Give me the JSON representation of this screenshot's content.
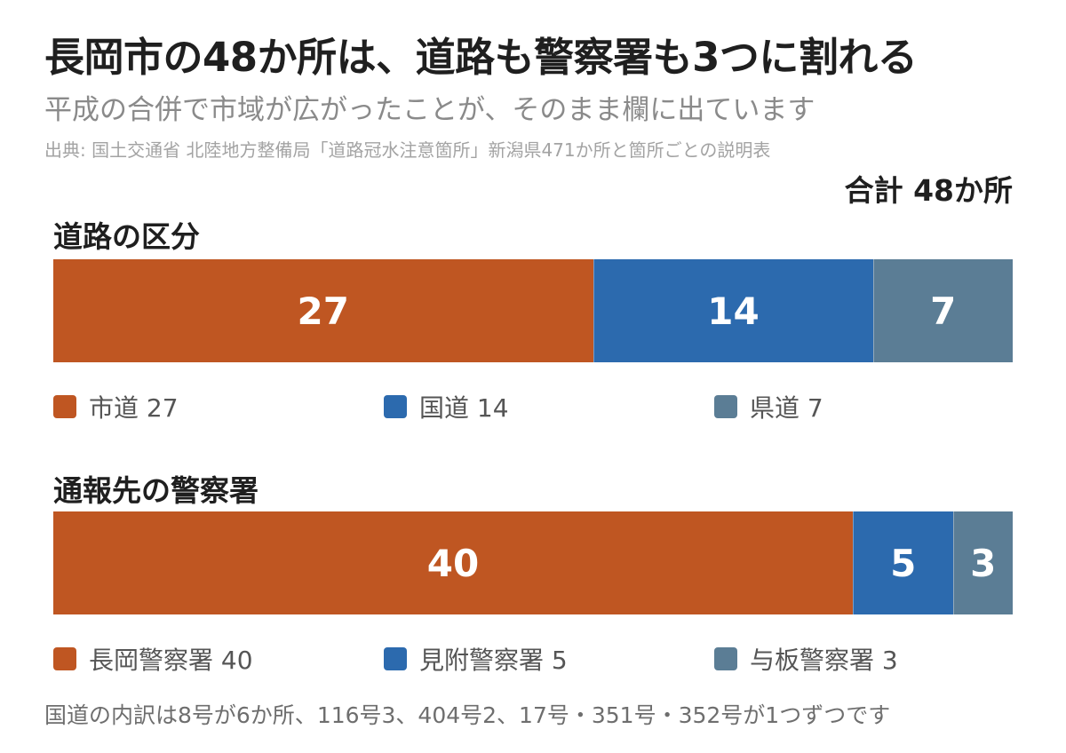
{
  "header": {
    "title": "長岡市の48か所は、道路も警察署も3つに割れる",
    "subtitle": "平成の合併で市域が広がったことが、そのまま欄に出ています",
    "source": "出典: 国土交通省 北陸地方整備局「道路冠水注意箇所」新潟県471か所と箇所ごとの説明表",
    "total": "合計 48か所"
  },
  "colors": {
    "orange": "#bf5622",
    "blue": "#2c6aae",
    "slate": "#5b7d95"
  },
  "chart_data": [
    {
      "type": "bar",
      "orientation": "horizontal-stacked",
      "title": "道路の区分",
      "total": 48,
      "series": [
        {
          "name": "市道",
          "value": 27,
          "label": "27",
          "legend": "市道 27",
          "color": "#bf5622"
        },
        {
          "name": "国道",
          "value": 14,
          "label": "14",
          "legend": "国道 14",
          "color": "#2c6aae"
        },
        {
          "name": "県道",
          "value": 7,
          "label": "7",
          "legend": "県道 7",
          "color": "#5b7d95"
        }
      ]
    },
    {
      "type": "bar",
      "orientation": "horizontal-stacked",
      "title": "通報先の警察署",
      "total": 48,
      "series": [
        {
          "name": "長岡警察署",
          "value": 40,
          "label": "40",
          "legend": "長岡警察署 40",
          "color": "#bf5622"
        },
        {
          "name": "見附警察署",
          "value": 5,
          "label": "5",
          "legend": "見附警察署 5",
          "color": "#2c6aae"
        },
        {
          "name": "与板警察署",
          "value": 3,
          "label": "3",
          "legend": "与板警察署 3",
          "color": "#5b7d95"
        }
      ]
    }
  ],
  "footer": {
    "note": "国道の内訳は8号が6か所、116号3、404号2、17号・351号・352号が1つずつです"
  }
}
